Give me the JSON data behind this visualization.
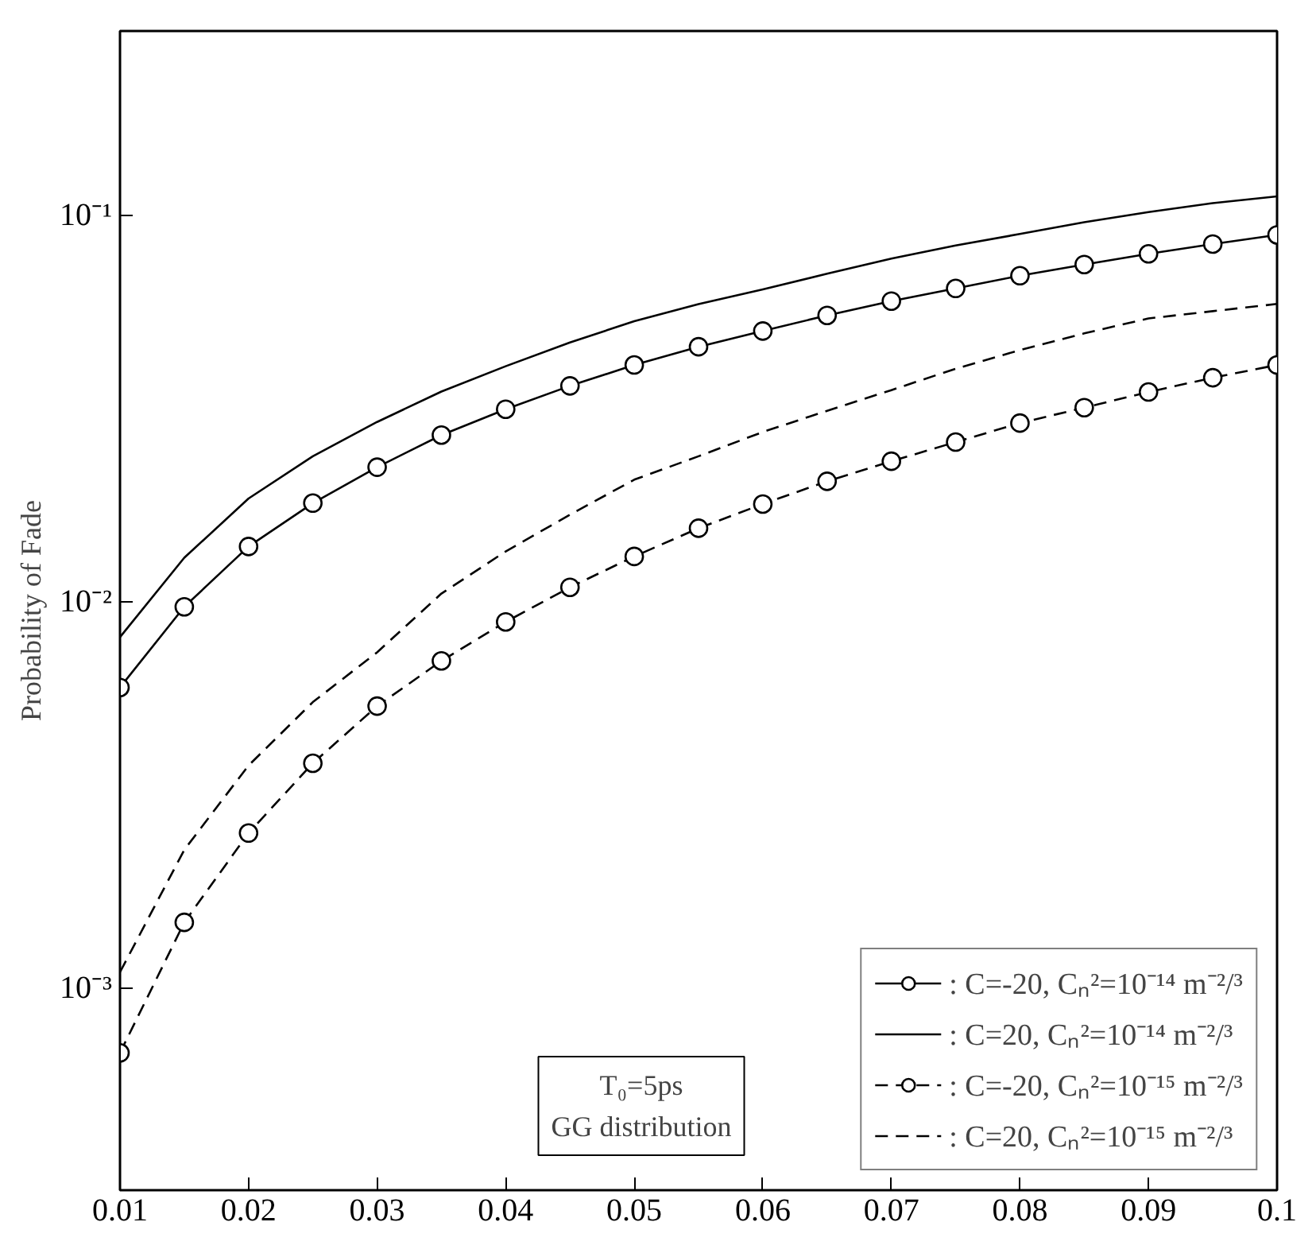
{
  "chart_data": {
    "type": "line",
    "ylabel": "Probability of Fade",
    "log": "y",
    "grid": false,
    "legend": "bottom right",
    "x": [
      0.01,
      0.015,
      0.02,
      0.025,
      0.03,
      0.035,
      0.04,
      0.045,
      0.05,
      0.055,
      0.06,
      0.065,
      0.07,
      0.075,
      0.08,
      0.085,
      0.09,
      0.095,
      0.1
    ],
    "xlim": [
      0.01,
      0.1
    ],
    "xticks": [
      0.01,
      0.02,
      0.03,
      0.04,
      0.05,
      0.06,
      0.07,
      0.08,
      0.09,
      0.1
    ],
    "ylim": [
      0.0003,
      0.3
    ],
    "yticks": [
      {
        "value": 0.001,
        "label": "10⁻³"
      },
      {
        "value": 0.01,
        "label": "10⁻²"
      },
      {
        "value": 0.1,
        "label": "10⁻¹"
      }
    ],
    "series": [
      {
        "name": ": C=-20, Cₙ²=10⁻¹⁴ m⁻²/³",
        "color": "#000000",
        "marker": "circle",
        "line_style": "solid",
        "values": [
          0.006,
          0.0097,
          0.0139,
          0.018,
          0.0223,
          0.027,
          0.0315,
          0.0362,
          0.041,
          0.0457,
          0.0502,
          0.0551,
          0.06,
          0.0647,
          0.0698,
          0.0746,
          0.0795,
          0.0843,
          0.089
        ]
      },
      {
        "name": ": C=20, Cₙ²=10⁻¹⁴ m⁻²/³",
        "color": "#000000",
        "marker": "none",
        "line_style": "solid",
        "values": [
          0.0081,
          0.013,
          0.0185,
          0.0238,
          0.0292,
          0.035,
          0.0407,
          0.0469,
          0.0532,
          0.0589,
          0.0643,
          0.0706,
          0.0773,
          0.0836,
          0.0895,
          0.096,
          0.102,
          0.1076,
          0.112
        ]
      },
      {
        "name": ": C=-20, Cₙ²=10⁻¹⁵ m⁻²/³",
        "color": "#000000",
        "marker": "circle",
        "line_style": "dashed",
        "values": [
          0.00068,
          0.00148,
          0.00252,
          0.00382,
          0.00537,
          0.00703,
          0.00887,
          0.0109,
          0.0131,
          0.0155,
          0.0179,
          0.0205,
          0.0231,
          0.0259,
          0.029,
          0.0318,
          0.0349,
          0.038,
          0.041
        ]
      },
      {
        "name": ": C=20, Cₙ²=10⁻¹⁵ m⁻²/³",
        "color": "#000000",
        "marker": "none",
        "line_style": "dashed",
        "values": [
          0.0011,
          0.00228,
          0.00377,
          0.0055,
          0.0074,
          0.0105,
          0.0135,
          0.0168,
          0.0207,
          0.0238,
          0.0275,
          0.0312,
          0.0353,
          0.0401,
          0.0448,
          0.0495,
          0.0541,
          0.0565,
          0.059
        ]
      }
    ],
    "annotations": [
      "T₀=5ps",
      "GG distribution"
    ]
  }
}
